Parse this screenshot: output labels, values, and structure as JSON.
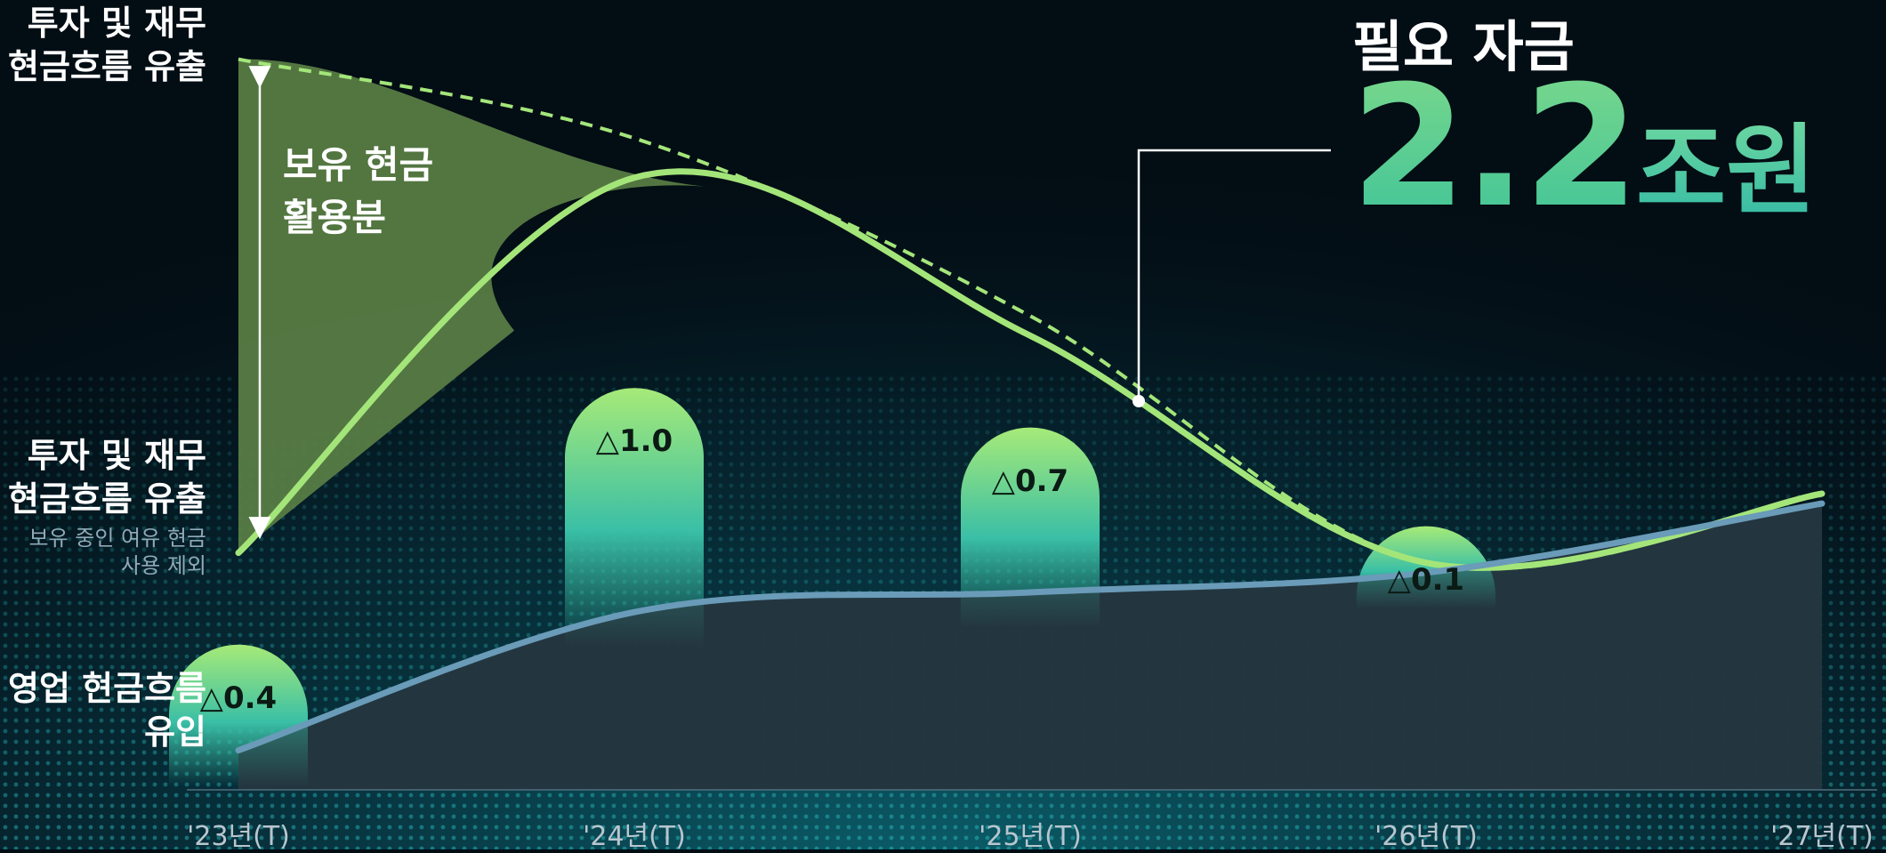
{
  "headline": {
    "title": "필요 자금",
    "value": "2.2",
    "unit": "조원"
  },
  "labels": {
    "top": [
      "투자 및 재무",
      "현금흐름 유출"
    ],
    "middle": [
      "투자 및 재무",
      "현금흐름 유출"
    ],
    "middle_note": [
      "보유 중인 여유 현금",
      "사용 제외"
    ],
    "bottom": [
      "영업 현금흐름",
      "유입"
    ],
    "annotation": [
      "보유 현금",
      "활용분"
    ]
  },
  "colors": {
    "background": "#030d14",
    "outflow_line": "#a4e57a",
    "inflow_line": "#6a9bb8",
    "inflow_area": "#253640",
    "cash_area": "#5a7f45",
    "bar_top": "#a6ea78",
    "bar_mid": "#3abfa6"
  },
  "chart_data": {
    "type": "line",
    "x": [
      "'23년(T)",
      "'24년(T)",
      "'25년(T)",
      "'26년(T)",
      "'27년(T)"
    ],
    "series": [
      {
        "name": "투자 및 재무 현금흐름 유출",
        "values": [
          1.2,
          3.1,
          2.3,
          1.15,
          1.5
        ]
      },
      {
        "name": "투자 및 재무 현금흐름 유출",
        "values": [
          3.7,
          3.3,
          2.4,
          1.15,
          1.5
        ]
      },
      {
        "name": "영업 현금흐름 유입",
        "values": [
          0.2,
          0.9,
          1.0,
          1.1,
          1.45
        ]
      }
    ],
    "gaps": [
      {
        "x": "'23년(T)",
        "label": "△0.4",
        "value": 0.4
      },
      {
        "x": "'24년(T)",
        "label": "△1.0",
        "value": 1.0
      },
      {
        "x": "'25년(T)",
        "label": "△0.7",
        "value": 0.7
      },
      {
        "x": "'26년(T)",
        "label": "△0.1",
        "value": 0.1
      }
    ],
    "total": {
      "label": "2.2",
      "unit": "조원"
    }
  }
}
